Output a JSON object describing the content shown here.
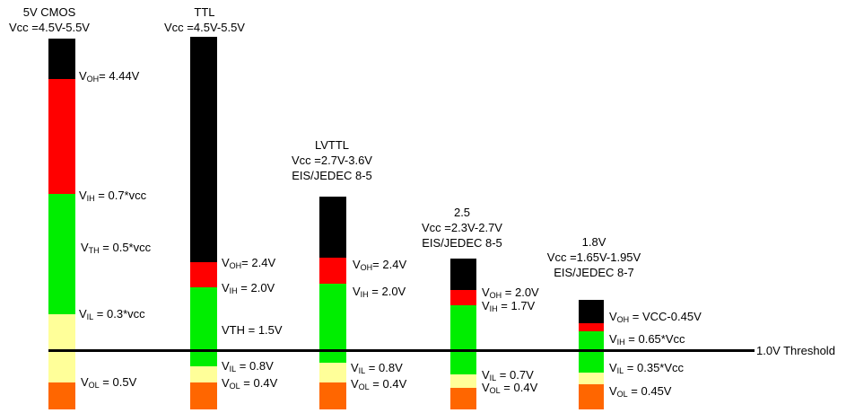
{
  "columns": [
    {
      "title": "5V CMOS",
      "vcc": "Vcc =4.5V-5.5V",
      "labels": {
        "voh": {
          "v": "V",
          "sub": "OH",
          "rest": "= 4.44V"
        },
        "vih": {
          "v": "V",
          "sub": "IH",
          "rest": " = 0.7*vcc"
        },
        "vth": {
          "v": "V",
          "sub": "TH",
          "rest": " = 0.5*vcc"
        },
        "vil": {
          "v": "V",
          "sub": "IL",
          "rest": " = 0.3*vcc"
        },
        "vol": {
          "v": "V",
          "sub": "OL",
          "rest": " = 0.5V"
        }
      }
    },
    {
      "title": "TTL",
      "vcc": "Vcc =4.5V-5.5V",
      "labels": {
        "voh": {
          "v": "V",
          "sub": "OH",
          "rest": "= 2.4V"
        },
        "vih": {
          "v": "V",
          "sub": "IH",
          "rest": " = 2.0V"
        },
        "vth": "VTH = 1.5V",
        "vil": {
          "v": "V",
          "sub": "IL",
          "rest": " = 0.8V"
        },
        "vol": {
          "v": "V",
          "sub": "OL",
          "rest": " = 0.4V"
        }
      }
    },
    {
      "title": "LVTTL",
      "vcc": "Vcc =2.7V-3.6V",
      "std": "EIS/JEDEC 8-5",
      "labels": {
        "voh": {
          "v": "V",
          "sub": "OH",
          "rest": "= 2.4V"
        },
        "vih": {
          "v": "V",
          "sub": "IH",
          "rest": " = 2.0V"
        },
        "vil": {
          "v": "V",
          "sub": "IL",
          "rest": " = 0.8V"
        },
        "vol": {
          "v": "V",
          "sub": "OL",
          "rest": " = 0.4V"
        }
      }
    },
    {
      "title": "2.5",
      "vcc": "Vcc =2.3V-2.7V",
      "std": "EIS/JEDEC 8-5",
      "labels": {
        "voh": {
          "v": "V",
          "sub": "OH",
          "rest": " = 2.0V"
        },
        "vih": {
          "v": "V",
          "sub": "IH",
          "rest": " = 1.7V"
        },
        "vil": {
          "v": "V",
          "sub": "IL",
          "rest": " = 0.7V"
        },
        "vol": {
          "v": "V",
          "sub": "OL",
          "rest": " = 0.4V"
        }
      }
    },
    {
      "title": "1.8V",
      "vcc": "Vcc =1.65V-1.95V",
      "std": "EIS/JEDEC 8-7",
      "labels": {
        "voh": {
          "v": "V",
          "sub": "OH",
          "rest": " = VCC-0.45V"
        },
        "vih": {
          "v": "V",
          "sub": "IH",
          "rest": " = 0.65*Vcc"
        },
        "vil": {
          "v": "V",
          "sub": "IL",
          "rest": " = 0.35*Vcc"
        },
        "vol": {
          "v": "V",
          "sub": "OL",
          "rest": " = 0.45V"
        }
      }
    }
  ],
  "threshold_label": "1.0V Threshold",
  "colors": {
    "output_high": "#000000",
    "undefined_high": "#ff0000",
    "input_high": "#00ee00",
    "input_low": "#ffff99",
    "output_low": "#ff6600",
    "threshold_line": "#000000"
  }
}
